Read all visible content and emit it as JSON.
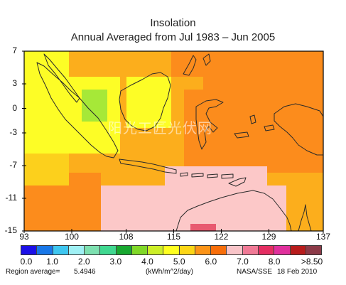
{
  "header": {
    "title": "Insolation",
    "subtitle": "Annual Averaged from Jul 1983 – Jun 2005"
  },
  "axes": {
    "lat_ticks": [
      "7",
      "3",
      "0",
      "-3",
      "-7",
      "-11",
      "-15"
    ],
    "lon_ticks": [
      "93",
      "100",
      "108",
      "115",
      "122",
      "129",
      "137"
    ],
    "lat_range": [
      -15,
      7
    ],
    "lon_range": [
      93,
      137
    ]
  },
  "legend": {
    "labels": [
      "0.0",
      "1.0",
      "2.0",
      "3.0",
      "4.0",
      "5.0",
      "6.0",
      "7.0",
      "8.0",
      ">8.50"
    ],
    "colors": [
      "#1c10e8",
      "#1877e8",
      "#3ec6f0",
      "#9ff0f4",
      "#7de0b0",
      "#40d890",
      "#18a830",
      "#80d828",
      "#ccee28",
      "#ffff20",
      "#fcd616",
      "#fc9418",
      "#f86e0a",
      "#f8c4c8",
      "#f07a96",
      "#e42e62",
      "#e0309c",
      "#b81c1c",
      "#8c3a48"
    ],
    "units": "(kWh/m^2/day)"
  },
  "footer": {
    "region_avg_label": "Region average=",
    "region_avg_value": "5.4946",
    "source": "NASA/SSE",
    "date": "18 Feb 2010"
  },
  "watermark": "阳光工匠光伏网",
  "map_palette": {
    "orange": "#fc8c1c",
    "light_orange": "#fcae1c",
    "gold": "#fcd01c",
    "yellow": "#fdfd26",
    "pink": "#fcc8c8",
    "lime": "#a6e838",
    "red_pink": "#e85a70",
    "coast": "#2a2a2a"
  }
}
